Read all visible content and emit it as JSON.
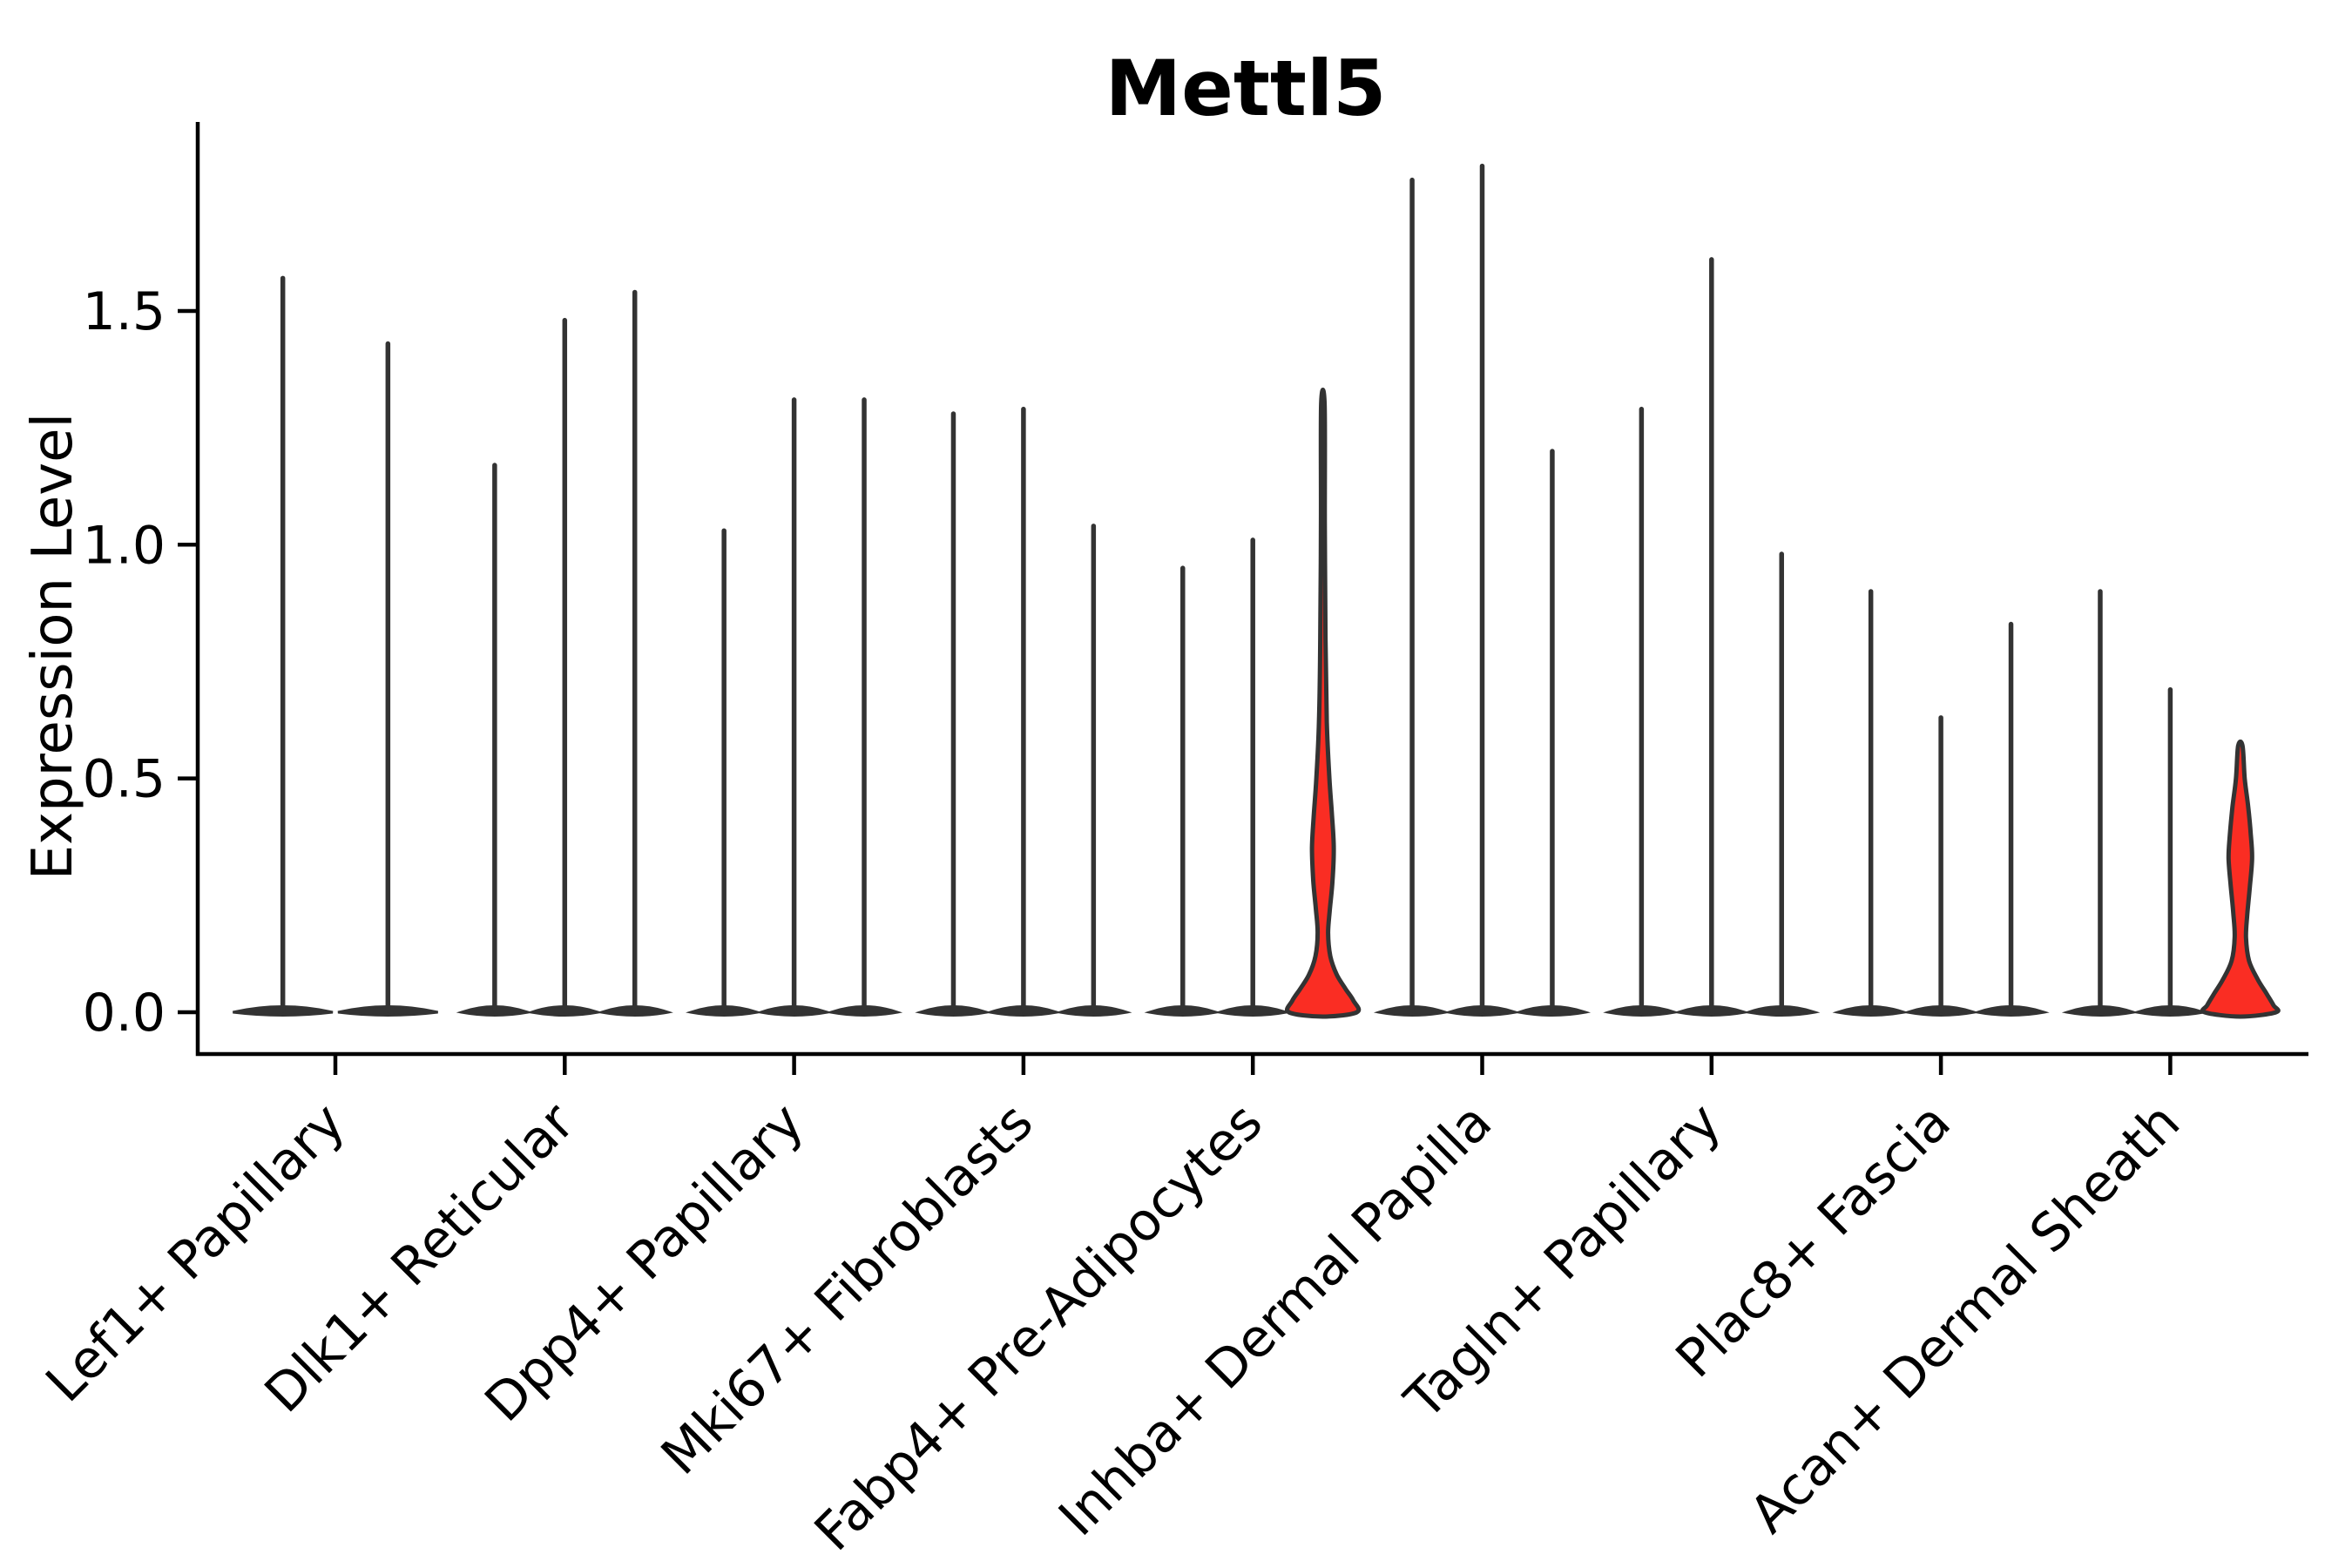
{
  "title": "Mettl5",
  "y_axis": {
    "label": "Expression Level",
    "tick_labels": [
      "0.0",
      "0.5",
      "1.0",
      "1.5"
    ],
    "tick_values": [
      0.0,
      0.5,
      1.0,
      1.5
    ]
  },
  "x_axis": {
    "tick_labels": [
      "Lef1+ Papillary",
      "Dlk1+ Reticular",
      "Dpp4+ Papillary",
      "Mki67+ Fibroblasts",
      "Fabp4+ Pre-Adipocytes",
      "Inhba+ Dermal Papilla",
      "Tagln+ Papillary",
      "Plac8+ Fascia",
      "Acan+ Dermal Sheath"
    ],
    "label_rotation_deg": 45
  },
  "colors": {
    "violin_dark": "#333333",
    "highlight_red": "#FA2D23",
    "axis_black": "#000000",
    "background": "#FFFFFF"
  },
  "chart_data": {
    "type": "violin",
    "title": "Mettl5",
    "xlabel": "",
    "ylabel": "Expression Level",
    "ylim": [
      -0.09,
      1.91
    ],
    "yticks": [
      0.0,
      0.5,
      1.0,
      1.5
    ],
    "ytick_labels": [
      "0.0",
      "0.5",
      "1.0",
      "1.5"
    ],
    "grid": false,
    "legend": "none",
    "categories": [
      "Lef1+ Papillary",
      "Dlk1+ Reticular",
      "Dpp4+ Papillary",
      "Mki67+ Fibroblasts",
      "Fabp4+ Pre-Adipocytes",
      "Inhba+ Dermal Papilla",
      "Tagln+ Papillary",
      "Plac8+ Fascia",
      "Acan+ Dermal Sheath"
    ],
    "description": "Each category holds 2-3 narrow violins; nearly all collapse to a spike reaching max expression with a flat bulge at 0. Two violins are filled red with visible density bodies.",
    "groups": [
      {
        "category": "Lef1+ Papillary",
        "violins": [
          {
            "max": 1.57,
            "fill": "dark"
          },
          {
            "max": 1.43,
            "fill": "dark"
          }
        ]
      },
      {
        "category": "Dlk1+ Reticular",
        "violins": [
          {
            "max": 1.17,
            "fill": "dark"
          },
          {
            "max": 1.48,
            "fill": "dark"
          },
          {
            "max": 1.54,
            "fill": "dark"
          }
        ]
      },
      {
        "category": "Dpp4+ Papillary",
        "violins": [
          {
            "max": 1.03,
            "fill": "dark"
          },
          {
            "max": 1.31,
            "fill": "dark"
          },
          {
            "max": 1.31,
            "fill": "dark"
          }
        ]
      },
      {
        "category": "Mki67+ Fibroblasts",
        "violins": [
          {
            "max": 1.28,
            "fill": "dark"
          },
          {
            "max": 1.29,
            "fill": "dark"
          },
          {
            "max": 1.04,
            "fill": "dark"
          }
        ]
      },
      {
        "category": "Fabp4+ Pre-Adipocytes",
        "violins": [
          {
            "max": 0.95,
            "fill": "dark"
          },
          {
            "max": 1.01,
            "fill": "dark"
          },
          {
            "max": 1.3,
            "fill": "red",
            "profile": [
              [
                1.3,
                2.0
              ],
              [
                1.05,
                2.2
              ],
              [
                0.8,
                3.0
              ],
              [
                0.62,
                4.5
              ],
              [
                0.5,
                7.5
              ],
              [
                0.42,
                10.5
              ],
              [
                0.35,
                12.5
              ],
              [
                0.28,
                11.0
              ],
              [
                0.22,
                8.0
              ],
              [
                0.17,
                6.0
              ],
              [
                0.12,
                8.5
              ],
              [
                0.08,
                16.0
              ],
              [
                0.05,
                26.0
              ],
              [
                0.025,
                35.0
              ],
              [
                0.0,
                39.0
              ]
            ]
          }
        ]
      },
      {
        "category": "Inhba+ Dermal Papilla",
        "violins": [
          {
            "max": 1.78,
            "fill": "dark"
          },
          {
            "max": 1.81,
            "fill": "dark"
          },
          {
            "max": 1.2,
            "fill": "dark"
          }
        ]
      },
      {
        "category": "Tagln+ Papillary",
        "violins": [
          {
            "max": 1.29,
            "fill": "dark"
          },
          {
            "max": 1.61,
            "fill": "dark"
          },
          {
            "max": 0.98,
            "fill": "dark"
          }
        ]
      },
      {
        "category": "Plac8+ Fascia",
        "violins": [
          {
            "max": 0.9,
            "fill": "dark"
          },
          {
            "max": 0.63,
            "fill": "dark"
          },
          {
            "max": 0.83,
            "fill": "dark"
          }
        ]
      },
      {
        "category": "Acan+ Dermal Sheath",
        "violins": [
          {
            "max": 0.9,
            "fill": "dark"
          },
          {
            "max": 0.69,
            "fill": "dark"
          },
          {
            "max": 0.57,
            "fill": "red",
            "profile": [
              [
                0.57,
                2.5
              ],
              [
                0.5,
                5.0
              ],
              [
                0.44,
                9.0
              ],
              [
                0.38,
                12.0
              ],
              [
                0.33,
                13.5
              ],
              [
                0.27,
                11.0
              ],
              [
                0.21,
                8.0
              ],
              [
                0.16,
                6.5
              ],
              [
                0.11,
                10.0
              ],
              [
                0.07,
                20.0
              ],
              [
                0.04,
                30.0
              ],
              [
                0.015,
                38.0
              ],
              [
                0.0,
                41.0
              ]
            ]
          }
        ]
      }
    ]
  }
}
